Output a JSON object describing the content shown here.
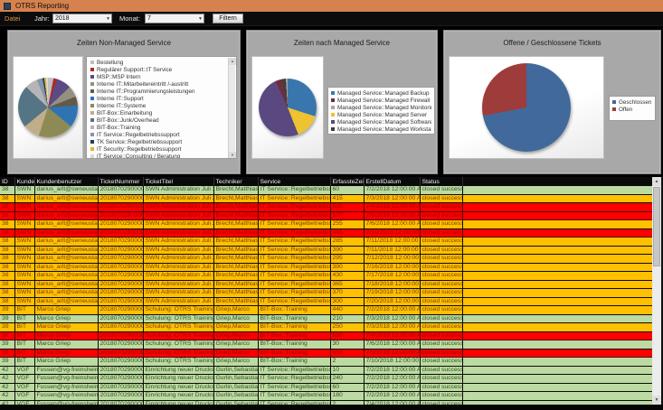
{
  "window": {
    "title": "OTRS Reporting"
  },
  "toolbar": {
    "menu_datei": "Datei",
    "jahr_label": "Jahr:",
    "jahr_value": "2018",
    "monat_label": "Monat:",
    "monat_value": "7",
    "filtern_button": "Filtern"
  },
  "panels": [
    {
      "title": "Zeiten Non-Managed Service"
    },
    {
      "title": "Zeiten nach Managed Service"
    },
    {
      "title": "Offene / Geschlossene Tickets"
    }
  ],
  "colors": {
    "titlebar_orange": "#d5824e",
    "menu_accent_orange": "#e0913f",
    "row_green": "#bcdaa2",
    "row_yellow": "#ffc000",
    "row_red": "#fe0000",
    "panel_gray": "#a8a8a8"
  },
  "chart_data": [
    {
      "type": "pie",
      "title": "Zeiten Non-Managed Service",
      "legend_position": "right",
      "slices": [
        {
          "label": "Bestellung",
          "value": 3,
          "color": "#bfbfbf"
        },
        {
          "label": "Regulärer Support::IT Service",
          "value": 2,
          "color": "#aa2c24"
        },
        {
          "label": "MSP::MSP Intern",
          "value": 8,
          "color": "#5c4a87"
        },
        {
          "label": "Interne IT::Mitarbeitereintritt /-austritt",
          "value": 6,
          "color": "#93917e"
        },
        {
          "label": "Interne IT::Programmierungsleistungen",
          "value": 5,
          "color": "#63594a"
        },
        {
          "label": "Interne IT::Support",
          "value": 12,
          "color": "#2e74b5"
        },
        {
          "label": "Interne IT::Systeme",
          "value": 19,
          "color": "#8e8a55"
        },
        {
          "label": "BIT-Box::Einarbeitung",
          "value": 9,
          "color": "#bfae88"
        },
        {
          "label": "BIT-Box::Junk/Overhead",
          "value": 23,
          "color": "#557586"
        },
        {
          "label": "BIT-Box::Training",
          "value": 7,
          "color": "#b5b5b5"
        },
        {
          "label": "IT Service::Regelbetriebssupport",
          "value": 3,
          "color": "#8496a9"
        },
        {
          "label": "TK Service::Regelbetriebssupport",
          "value": 1,
          "color": "#223a5e"
        },
        {
          "label": "IT Security::Regelbetriebssupport",
          "value": 1,
          "color": "#e8b430"
        },
        {
          "label": "IT Service::Consulting / Beratung",
          "value": 1,
          "color": "#d9d9d9"
        }
      ],
      "values_note": "slice shares estimated from pie geometry"
    },
    {
      "type": "pie",
      "title": "Zeiten nach Managed Service",
      "legend_position": "right",
      "slices": [
        {
          "label": "Managed Service::Managed Backup",
          "value": 30,
          "color": "#3a76ae"
        },
        {
          "label": "Managed Service::Managed Firewall",
          "value": 4,
          "color": "#6e2e3e"
        },
        {
          "label": "Managed Service::Managed Monitoring",
          "value": 1,
          "color": "#a6a6a6"
        },
        {
          "label": "Managed Service::Managed Server",
          "value": 14,
          "color": "#eec231"
        },
        {
          "label": "Managed Service::Managed Software",
          "value": 49,
          "color": "#5a4980"
        },
        {
          "label": "Managed Service::Managed Workstation",
          "value": 2,
          "color": "#3f3f3f"
        }
      ],
      "draw_order": [
        0,
        3,
        4,
        1,
        5,
        2
      ],
      "values_note": "slice shares estimated from pie geometry"
    },
    {
      "type": "pie",
      "title": "Offene / Geschlossene Tickets",
      "legend_position": "right",
      "slices": [
        {
          "label": "Geschlossen",
          "value": 72,
          "color": "#41699c"
        },
        {
          "label": "Offen",
          "value": 28,
          "color": "#9e3b3b"
        }
      ],
      "values_note": "slice shares estimated from pie geometry"
    }
  ],
  "table": {
    "columns": [
      "ID",
      "Kunde",
      "Kundenbenutzer",
      "TicketNummer",
      "TicketTitel",
      "Techniker",
      "Service",
      "ErfassteZeit",
      "ErstellDatum",
      "Status"
    ],
    "rows": [
      {
        "color": "green",
        "cells": [
          "38",
          "SWN",
          "darius_arlt@swneustadt.de",
          "2018070290000111",
          "SWN Administration Juli 2018",
          "Brecht,Matthias",
          "IT Service::Regelbetriebssupport",
          "60",
          "7/2/2018 12:00:00 AM",
          "closed successful"
        ]
      },
      {
        "color": "yellow",
        "cells": [
          "38",
          "SWN",
          "darius_arlt@swneustadt.de",
          "2018070290000111",
          "SWN Administration Juli 2018",
          "Brecht,Matthias",
          "IT Service::Regelbetriebssupport",
          "415",
          "7/3/2018 12:00:00 AM",
          "closed successful"
        ]
      },
      {
        "color": "red",
        "cells": [
          "38",
          "SWN",
          "darius_arlt@swneustadt.de",
          "2018070290000111",
          "SWN Administration Juli 2018",
          "Brecht,Matthias",
          "IT Service::Regelbetriebssupport",
          "535",
          "7/4/2018 12:00:00 AM",
          "closed successful"
        ]
      },
      {
        "color": "red",
        "cells": [
          "38",
          "SWN",
          "darius_arlt@swneustadt.de",
          "2018070290000111",
          "SWN Administration Juli 2018",
          "Brecht,Matthias",
          "IT Service::Regelbetriebssupport",
          "570",
          "7/5/2018 12:00:00 AM",
          "closed successful"
        ]
      },
      {
        "color": "yellow",
        "cells": [
          "38",
          "SWN",
          "darius_arlt@swneustadt.de",
          "2018070290000111",
          "SWN Administration Juli 2018",
          "Brecht,Matthias",
          "IT Service::Regelbetriebssupport",
          "255",
          "7/6/2018 12:00:00 AM",
          "closed successful"
        ]
      },
      {
        "color": "red",
        "cells": [
          "38",
          "SWN",
          "darius_arlt@swneustadt.de",
          "2018070290000111",
          "SWN Administration Juli 2018",
          "Brecht,Matthias",
          "IT Service::Regelbetriebssupport",
          "445",
          "7/10/2018 12:00:00 AM",
          "closed successful"
        ]
      },
      {
        "color": "yellow",
        "cells": [
          "38",
          "SWN",
          "darius_arlt@swneustadt.de",
          "2018070290000111",
          "SWN Administration Juli 2018",
          "Brecht,Matthias",
          "IT Service::Regelbetriebssupport",
          "285",
          "7/11/2018 12:00:00 AM",
          "closed successful"
        ]
      },
      {
        "color": "yellow",
        "cells": [
          "38",
          "SWN",
          "darius_arlt@swneustadt.de",
          "2018070290000111",
          "SWN Administration Juli 2018",
          "Brecht,Matthias",
          "IT Service::Regelbetriebssupport",
          "390",
          "7/11/2018 12:00:00 AM",
          "closed successful"
        ]
      },
      {
        "color": "yellow",
        "cells": [
          "38",
          "SWN",
          "darius_arlt@swneustadt.de",
          "2018070290000111",
          "SWN Administration Juli 2018",
          "Brecht,Matthias",
          "IT Service::Regelbetriebssupport",
          "295",
          "7/12/2018 12:00:00 AM",
          "closed successful"
        ]
      },
      {
        "color": "yellow",
        "cells": [
          "38",
          "SWN",
          "darius_arlt@swneustadt.de",
          "2018070290000111",
          "SWN Administration Juli 2018",
          "Brecht,Matthias",
          "IT Service::Regelbetriebssupport",
          "390",
          "7/16/2018 12:00:00 AM",
          "closed successful"
        ]
      },
      {
        "color": "yellow",
        "cells": [
          "38",
          "SWN",
          "darius_arlt@swneustadt.de",
          "2018070290000111",
          "SWN Administration Juli 2018",
          "Brecht,Matthias",
          "IT Service::Regelbetriebssupport",
          "430",
          "7/17/2018 12:00:00 AM",
          "closed successful"
        ]
      },
      {
        "color": "yellow",
        "cells": [
          "38",
          "SWN",
          "darius_arlt@swneustadt.de",
          "2018070290000111",
          "SWN Administration Juli 2018",
          "Brecht,Matthias",
          "IT Service::Regelbetriebssupport",
          "365",
          "7/18/2018 12:00:00 AM",
          "closed successful"
        ]
      },
      {
        "color": "yellow",
        "cells": [
          "38",
          "SWN",
          "darius_arlt@swneustadt.de",
          "2018070290000111",
          "SWN Administration Juli 2018",
          "Brecht,Matthias",
          "IT Service::Regelbetriebssupport",
          "370",
          "7/19/2018 12:00:00 AM",
          "closed successful"
        ]
      },
      {
        "color": "yellow",
        "cells": [
          "38",
          "SWN",
          "darius_arlt@swneustadt.de",
          "2018070290000111",
          "SWN Administration Juli 2018",
          "Brecht,Matthias",
          "IT Service::Regelbetriebssupport",
          "300",
          "7/20/2018 12:00:00 AM",
          "closed successful"
        ]
      },
      {
        "color": "yellow",
        "cells": [
          "39",
          "BIT",
          "Marco Griep",
          "2018070290000121",
          "Schulung: OTRS Training",
          "Griep,Marco",
          "BIT-Box::Training",
          "440",
          "7/2/2018 12:00:00 AM",
          "closed successful"
        ]
      },
      {
        "color": "green",
        "cells": [
          "39",
          "BIT",
          "Marco Griep",
          "2018070290000121",
          "Schulung: OTRS Training",
          "Griep,Marco",
          "BIT-Box::Training",
          "210",
          "7/3/2018 12:00:00 AM",
          "closed successful"
        ]
      },
      {
        "color": "yellow",
        "cells": [
          "39",
          "BIT",
          "Marco Griep",
          "2018070290000121",
          "Schulung: OTRS Training",
          "Griep,Marco",
          "BIT-Box::Training",
          "250",
          "7/3/2018 12:00:00 AM",
          "closed successful"
        ]
      },
      {
        "color": "red",
        "cells": [
          "39",
          "BIT",
          "Marco Griep",
          "2018070290000121",
          "Schulung: OTRS Training",
          "Griep,Marco",
          "BIT-Box::Training",
          "530",
          "7/4/2018 12:00:00 AM",
          "closed successful"
        ]
      },
      {
        "color": "green",
        "cells": [
          "39",
          "BIT",
          "Marco Griep",
          "2018070290000121",
          "Schulung: OTRS Training",
          "Griep,Marco",
          "BIT-Box::Training",
          "30",
          "7/6/2018 12:00:00 AM",
          "closed successful"
        ]
      },
      {
        "color": "red",
        "cells": [
          "39",
          "BIT",
          "Marco Griep",
          "2018070290000121",
          "Schulung: OTRS Training",
          "Griep,Marco",
          "BIT-Box::Training",
          "550",
          "7/9/2018 12:00:00 AM",
          "closed successful"
        ]
      },
      {
        "color": "green",
        "cells": [
          "39",
          "BIT",
          "Marco Griep",
          "2018070290000121",
          "Schulung: OTRS Training",
          "Griep,Marco",
          "BIT-Box::Training",
          "2",
          "7/10/2018 12:00:00 AM",
          "closed successful"
        ]
      },
      {
        "color": "green",
        "cells": [
          "42",
          "VGF",
          "Fussen@vg-freinsheim.de",
          "2018070290000157",
          "Einrichtung neuer Druckserver",
          "Gurlin,Sebastian",
          "IT Service::Regelbetriebssupport",
          "10",
          "7/2/2018 12:00:00 AM",
          "closed successful"
        ]
      },
      {
        "color": "green",
        "cells": [
          "42",
          "VGF",
          "Fussen@vg-freinsheim.de",
          "2018070290000157",
          "Einrichtung neuer Druckserver",
          "Gurlin,Sebastian",
          "IT Service::Regelbetriebssupport",
          "240",
          "7/2/2018 12:00:00 AM",
          "closed successful"
        ]
      },
      {
        "color": "green",
        "cells": [
          "42",
          "VGF",
          "Fussen@vg-freinsheim.de",
          "2018070290000157",
          "Einrichtung neuer Druckserver",
          "Gurlin,Sebastian",
          "IT Service::Regelbetriebssupport",
          "60",
          "7/2/2018 12:00:00 AM",
          "closed successful"
        ]
      },
      {
        "color": "green",
        "cells": [
          "42",
          "VGF",
          "Fussen@vg-freinsheim.de",
          "2018070290000157",
          "Einrichtung neuer Druckserver",
          "Gurlin,Sebastian",
          "IT Service::Regelbetriebssupport",
          "180",
          "7/2/2018 12:00:00 AM",
          "closed successful"
        ]
      },
      {
        "color": "green",
        "cells": [
          "42",
          "VGF",
          "Fussen@vg-freinsheim.de",
          "2018070290000157",
          "Einrichtung neuer Druckserver",
          "Gurlin,Sebastian",
          "IT Service::Regelbetriebssupport",
          "2",
          "7/4/2018 12:00:00 AM",
          "closed successful"
        ]
      },
      {
        "color": "green",
        "cells": [
          "42",
          "VGF",
          "Fussen@vg-freinsheim.de",
          "2018070290000157",
          "Einrichtung neuer Druckserver",
          "Mestanek,Matthias",
          "IT Service::Regelbetriebssupport",
          "15",
          "7/4/2018 12:00:00 AM",
          "closed successful"
        ]
      }
    ]
  }
}
